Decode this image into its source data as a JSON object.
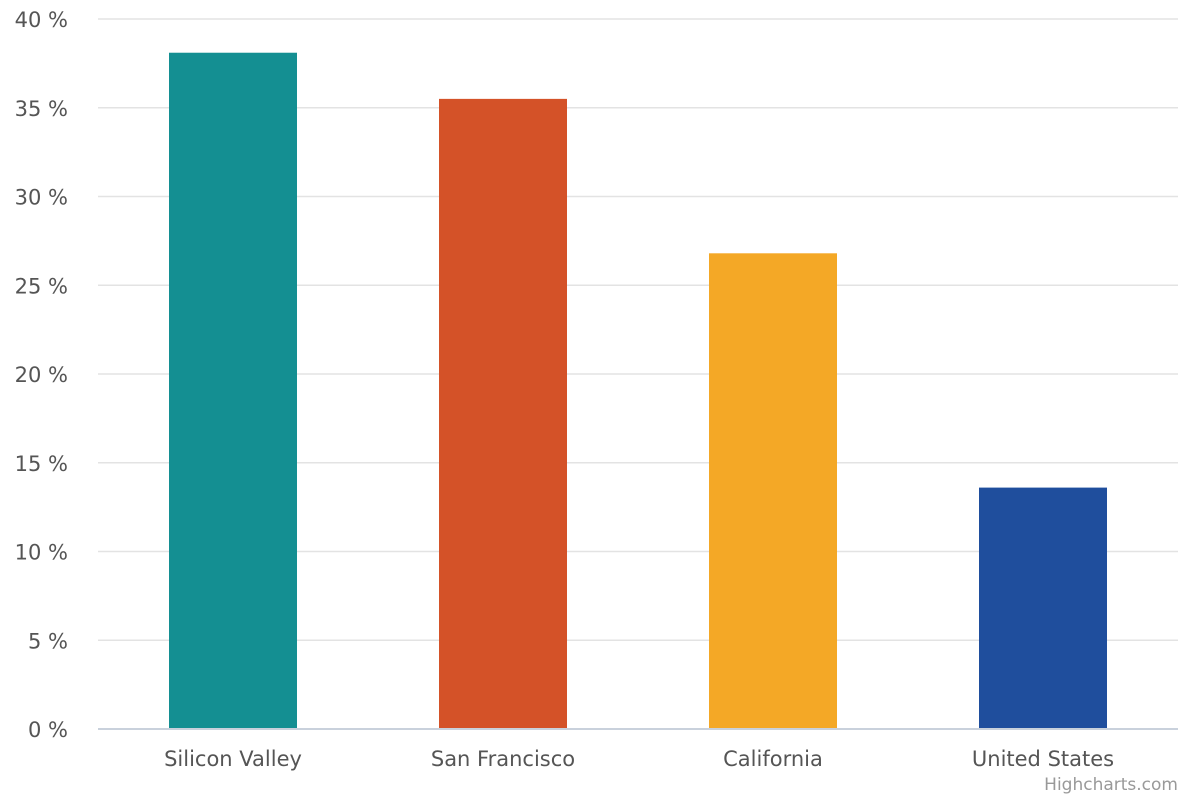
{
  "chart_data": {
    "type": "bar",
    "categories": [
      "Silicon Valley",
      "San Francisco",
      "California",
      "United States"
    ],
    "values": [
      38.1,
      35.5,
      26.8,
      13.6
    ],
    "colors": [
      "#148f92",
      "#d45228",
      "#f4a826",
      "#1f4e9d"
    ],
    "ylim": [
      0,
      40
    ],
    "yticks": [
      0,
      5,
      10,
      15,
      20,
      25,
      30,
      35,
      40
    ],
    "ytick_suffix": " %",
    "grid": true,
    "legend": "none"
  },
  "credits": "Highcharts.com"
}
